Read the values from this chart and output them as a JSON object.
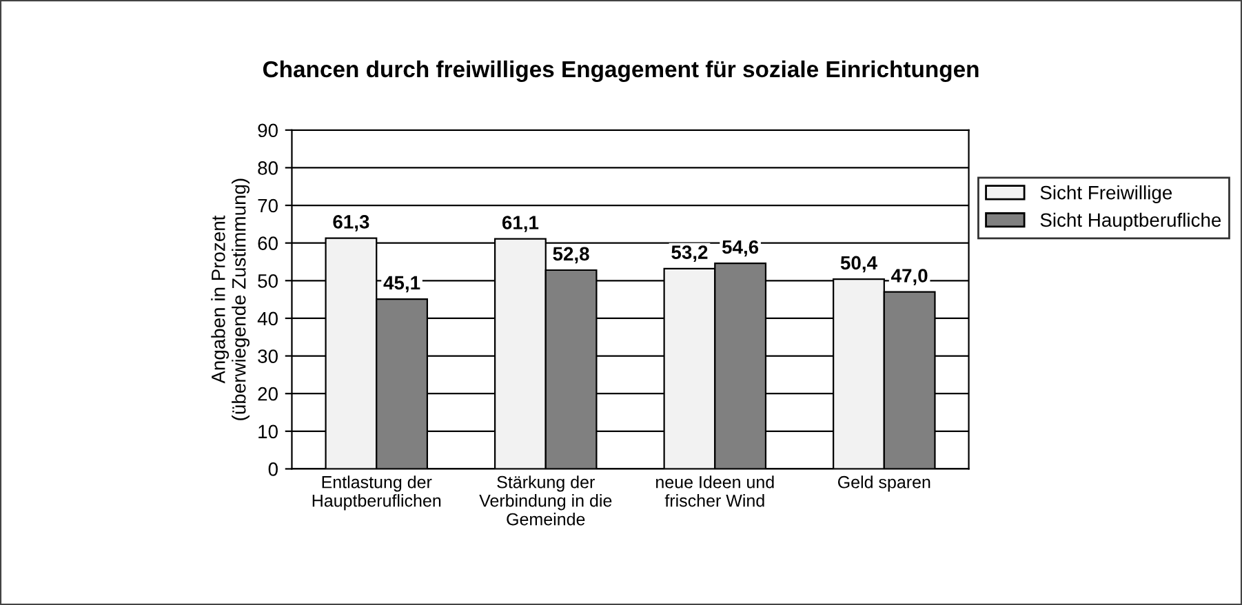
{
  "chart_data": {
    "type": "bar",
    "title": "Chancen durch freiwilliges Engagement für soziale Einrichtungen",
    "ylabel": "Angaben in Prozent\n(überwiegende Zustimmung)",
    "categories": [
      "Entlastung der\nHauptberuflichen",
      "Stärkung der\nVerbindung in die\nGemeinde",
      "neue Ideen und\nfrischer Wind",
      "Geld sparen"
    ],
    "series": [
      {
        "name": "Sicht Freiwillige",
        "color": "#f2f2f2",
        "values": [
          61.3,
          61.1,
          53.2,
          50.4
        ],
        "value_labels": [
          "61,3",
          "61,1",
          "53,2",
          "50,4"
        ]
      },
      {
        "name": "Sicht Hauptberufliche",
        "color": "#808080",
        "values": [
          45.1,
          52.8,
          54.6,
          47.0
        ],
        "value_labels": [
          "45,1",
          "52,8",
          "54,6",
          "47,0"
        ]
      }
    ],
    "ylim": [
      0,
      90
    ],
    "yticks": [
      0,
      10,
      20,
      30,
      40,
      50,
      60,
      70,
      80,
      90
    ],
    "grid": "y",
    "legend": "right"
  }
}
